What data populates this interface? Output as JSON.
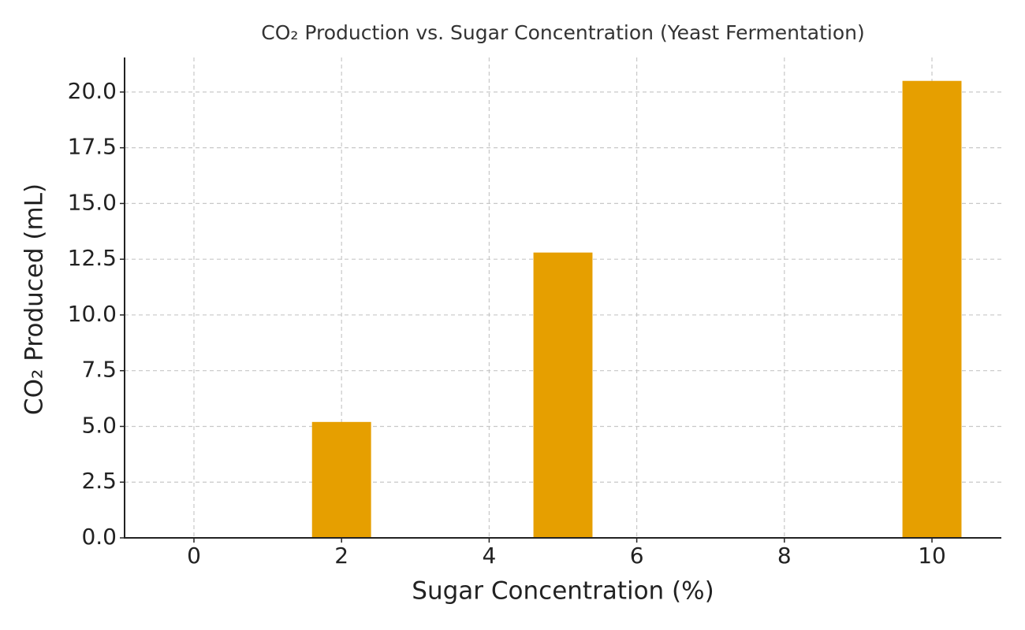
{
  "chart_data": {
    "type": "bar",
    "title": "CO₂ Production vs. Sugar Concentration (Yeast Fermentation)",
    "x_label": "Sugar Concentration (%)",
    "y_label": "CO₂ Produced (mL)",
    "x": [
      0,
      2,
      5,
      10
    ],
    "values": [
      0,
      5.2,
      12.8,
      20.5
    ],
    "color": "#e69f00",
    "xlim": [
      -0.94,
      10.94
    ],
    "xticks": [
      0,
      2,
      4,
      6,
      8,
      10
    ],
    "ylim": [
      0,
      21.55
    ],
    "yticks": [
      {
        "value": 0,
        "label": "0.0"
      },
      {
        "value": 2.5,
        "label": "2.5"
      },
      {
        "value": 5,
        "label": "5.0"
      },
      {
        "value": 7.5,
        "label": "7.5"
      },
      {
        "value": 10,
        "label": "10.0"
      },
      {
        "value": 12.5,
        "label": "12.5"
      },
      {
        "value": 15,
        "label": "15.0"
      },
      {
        "value": 17.5,
        "label": "17.5"
      },
      {
        "value": 20,
        "label": "20.0"
      }
    ],
    "grid": true
  }
}
